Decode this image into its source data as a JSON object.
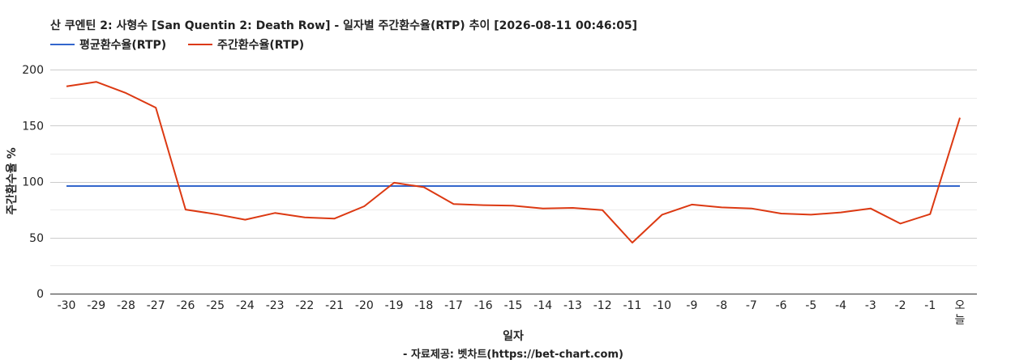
{
  "chart_data": {
    "type": "line",
    "title": "산 쿠엔틴 2: 사형수 [San Quentin 2: Death Row] - 일자별 주간환수율(RTP) 추이 [2026-08-11 00:46:05]",
    "xlabel": "일자",
    "ylabel": "주간환수율 %",
    "footer": "- 자료제공: 벳차트(https://bet-chart.com)",
    "legend_position": "top-left",
    "grid": true,
    "ylim": [
      0,
      200
    ],
    "yticks": [
      "0",
      "50",
      "100",
      "150",
      "200"
    ],
    "categories": [
      "-30",
      "-29",
      "-28",
      "-27",
      "-26",
      "-25",
      "-24",
      "-23",
      "-22",
      "-21",
      "-20",
      "-19",
      "-18",
      "-17",
      "-16",
      "-15",
      "-14",
      "-13",
      "-12",
      "-11",
      "-10",
      "-9",
      "-8",
      "-7",
      "-6",
      "-5",
      "-4",
      "-3",
      "-2",
      "-1",
      "오늘"
    ],
    "series": [
      {
        "name": "평균환수율(RTP)",
        "color": "#3366cc",
        "values": [
          96,
          96,
          96,
          96,
          96,
          96,
          96,
          96,
          96,
          96,
          96,
          96,
          96,
          96,
          96,
          96,
          96,
          96,
          96,
          96,
          96,
          96,
          96,
          96,
          96,
          96,
          96,
          96,
          96,
          96,
          96
        ]
      },
      {
        "name": "주간환수율(RTP)",
        "color": "#dc3912",
        "values": [
          185,
          189,
          179,
          166,
          75,
          71,
          66,
          72,
          68,
          67,
          78,
          99,
          95,
          80,
          79,
          78.5,
          76,
          76.5,
          74.5,
          45.5,
          70.5,
          79.5,
          77,
          76,
          71.5,
          70.5,
          72.5,
          76,
          62.5,
          71,
          157
        ]
      }
    ]
  }
}
